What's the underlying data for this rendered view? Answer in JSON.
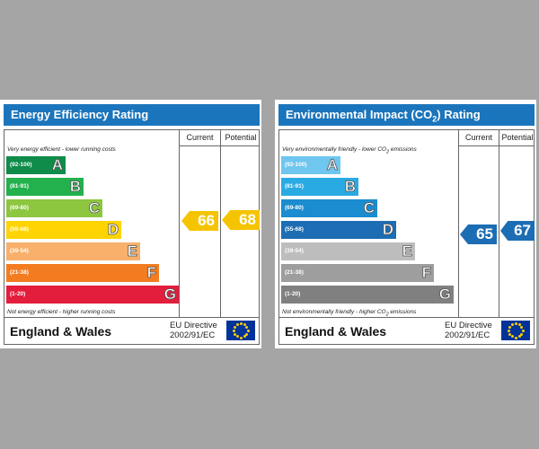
{
  "energy_efficiency": {
    "title": "Energy Efficiency Rating",
    "col_current": "Current",
    "col_potential": "Potential",
    "top_note": "Very energy efficient - lower running costs",
    "bottom_note": "Not energy efficient - higher running costs",
    "bands": [
      {
        "range": "(92-100)",
        "letter": "A",
        "color": "#0f8c4a"
      },
      {
        "range": "(81-91)",
        "letter": "B",
        "color": "#23b14d"
      },
      {
        "range": "(69-80)",
        "letter": "C",
        "color": "#8dc63f"
      },
      {
        "range": "(55-68)",
        "letter": "D",
        "color": "#ffd400"
      },
      {
        "range": "(39-54)",
        "letter": "E",
        "color": "#f8b06b"
      },
      {
        "range": "(21-38)",
        "letter": "F",
        "color": "#f37c21"
      },
      {
        "range": "(1-20)",
        "letter": "G",
        "color": "#e31d3c"
      }
    ],
    "current": "66",
    "potential": "68",
    "rating_color": "#f5c400",
    "region": "England & Wales",
    "directive_line1": "EU Directive",
    "directive_line2": "2002/91/EC"
  },
  "environmental_impact": {
    "title_pre": "Environmental Impact (CO",
    "title_sub": "2",
    "title_post": ") Rating",
    "col_current": "Current",
    "col_potential": "Potential",
    "top_note_pre": "Very environmentally friendly - lower CO",
    "top_note_sub": "2",
    "top_note_post": " emissions",
    "bottom_note_pre": "Not environmentally friendly - higher CO",
    "bottom_note_sub": "2",
    "bottom_note_post": " emissions",
    "bands": [
      {
        "range": "(92-100)",
        "letter": "A",
        "color": "#6fc6ef"
      },
      {
        "range": "(81-91)",
        "letter": "B",
        "color": "#2aaae2"
      },
      {
        "range": "(69-80)",
        "letter": "C",
        "color": "#1a8ccf"
      },
      {
        "range": "(55-68)",
        "letter": "D",
        "color": "#1c6db3"
      },
      {
        "range": "(39-54)",
        "letter": "E",
        "color": "#bdbdbd"
      },
      {
        "range": "(21-38)",
        "letter": "F",
        "color": "#9e9e9e"
      },
      {
        "range": "(1-20)",
        "letter": "G",
        "color": "#808080"
      }
    ],
    "current": "65",
    "potential": "67",
    "rating_color": "#1c6db3",
    "region": "England & Wales",
    "directive_line1": "EU Directive",
    "directive_line2": "2002/91/EC"
  }
}
